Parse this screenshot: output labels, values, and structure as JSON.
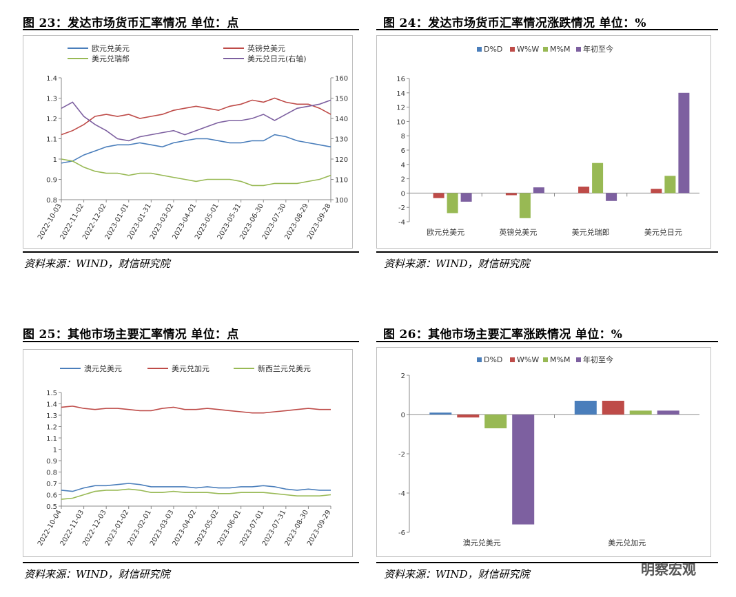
{
  "panels": [
    {
      "title": "图 23：发达市场货币汇率情况    单位：点",
      "source": "资料来源：WIND，财信研究院"
    },
    {
      "title": "图 24：发达市场货币汇率情况涨跌情况  单位：%",
      "source": "资料来源：WIND，财信研究院"
    },
    {
      "title": "图 25：其他市场主要汇率情况  单位：点",
      "source": "资料来源：WIND，财信研究院"
    },
    {
      "title": "图 26：其他市场主要汇率涨跌情况  单位：%",
      "source": "资料来源：WIND，财信研究院"
    }
  ],
  "watermark": "明察宏观",
  "chart_data": [
    {
      "type": "line",
      "legend_position": "top",
      "x_ticks": [
        "2022-10-03",
        "2022-11-02",
        "2022-12-02",
        "2023-01-01",
        "2023-01-31",
        "2023-03-02",
        "2023-04-01",
        "2023-05-01",
        "2023-05-31",
        "2023-06-30",
        "2023-07-30",
        "2023-08-29",
        "2023-09-28"
      ],
      "ylim": [
        0.8,
        1.4
      ],
      "yticks": [
        "0.8",
        "0.9",
        "1",
        "1.1",
        "1.2",
        "1.3",
        "1.4"
      ],
      "y2lim": [
        100,
        160
      ],
      "y2ticks": [
        "100",
        "110",
        "120",
        "130",
        "140",
        "150",
        "160"
      ],
      "grid": false,
      "series": [
        {
          "name": "欧元兑美元",
          "axis": "left",
          "color": "#4a7ebb",
          "values": [
            0.98,
            0.99,
            1.02,
            1.04,
            1.06,
            1.07,
            1.07,
            1.08,
            1.07,
            1.06,
            1.08,
            1.09,
            1.1,
            1.1,
            1.09,
            1.08,
            1.08,
            1.09,
            1.09,
            1.12,
            1.11,
            1.09,
            1.08,
            1.07,
            1.06
          ]
        },
        {
          "name": "英镑兑美元",
          "axis": "left",
          "color": "#be4b48",
          "values": [
            1.12,
            1.14,
            1.17,
            1.21,
            1.22,
            1.21,
            1.22,
            1.2,
            1.21,
            1.22,
            1.24,
            1.25,
            1.26,
            1.25,
            1.24,
            1.26,
            1.27,
            1.29,
            1.28,
            1.3,
            1.28,
            1.27,
            1.27,
            1.25,
            1.22
          ]
        },
        {
          "name": "美元兑瑞郎",
          "axis": "left",
          "color": "#98b954",
          "values": [
            1.0,
            0.99,
            0.96,
            0.94,
            0.93,
            0.93,
            0.92,
            0.93,
            0.93,
            0.92,
            0.91,
            0.9,
            0.89,
            0.9,
            0.9,
            0.9,
            0.89,
            0.87,
            0.87,
            0.88,
            0.88,
            0.88,
            0.89,
            0.9,
            0.92
          ]
        },
        {
          "name": "美元兑日元(右轴)",
          "axis": "right",
          "color": "#7d60a0",
          "values": [
            145,
            148,
            141,
            137,
            134,
            130,
            129,
            131,
            132,
            133,
            134,
            132,
            134,
            136,
            138,
            139,
            139,
            140,
            142,
            139,
            142,
            145,
            146,
            147,
            149
          ]
        }
      ]
    },
    {
      "type": "bar",
      "legend_position": "top",
      "categories": [
        "欧元兑美元",
        "英镑兑美元",
        "美元兑瑞郎",
        "美元兑日元"
      ],
      "ylim": [
        -4,
        16
      ],
      "yticks": [
        "-4",
        "-2",
        "0",
        "2",
        "4",
        "6",
        "8",
        "10",
        "12",
        "14",
        "16"
      ],
      "grid": false,
      "series": [
        {
          "name": "D%D",
          "color": "#4a7ebb",
          "values": [
            0.0,
            0.0,
            0.0,
            0.0
          ]
        },
        {
          "name": "W%W",
          "color": "#be4b48",
          "values": [
            -0.7,
            -0.3,
            0.9,
            0.6
          ]
        },
        {
          "name": "M%M",
          "color": "#98b954",
          "values": [
            -2.8,
            -3.5,
            4.2,
            2.4
          ]
        },
        {
          "name": "年初至今",
          "color": "#7d60a0",
          "values": [
            -1.2,
            0.8,
            -1.1,
            14.0
          ]
        }
      ]
    },
    {
      "type": "line",
      "legend_position": "top",
      "x_ticks": [
        "2022-10-04",
        "2022-11-03",
        "2022-12-03",
        "2023-01-02",
        "2023-02-01",
        "2023-03-03",
        "2023-04-02",
        "2023-05-02",
        "2023-06-01",
        "2023-07-01",
        "2023-07-31",
        "2023-08-30",
        "2023-09-29"
      ],
      "ylim": [
        0.5,
        1.5
      ],
      "yticks": [
        "0.5",
        "0.6",
        "0.7",
        "0.8",
        "0.9",
        "1",
        "1.1",
        "1.2",
        "1.3",
        "1.4",
        "1.5"
      ],
      "grid": false,
      "series": [
        {
          "name": "澳元兑美元",
          "color": "#4a7ebb",
          "values": [
            0.64,
            0.63,
            0.66,
            0.68,
            0.68,
            0.69,
            0.7,
            0.69,
            0.67,
            0.67,
            0.67,
            0.67,
            0.66,
            0.67,
            0.66,
            0.66,
            0.67,
            0.67,
            0.68,
            0.67,
            0.65,
            0.64,
            0.65,
            0.64,
            0.64
          ]
        },
        {
          "name": "美元兑加元",
          "color": "#be4b48",
          "values": [
            1.37,
            1.38,
            1.36,
            1.35,
            1.36,
            1.36,
            1.35,
            1.34,
            1.34,
            1.36,
            1.37,
            1.35,
            1.35,
            1.36,
            1.35,
            1.34,
            1.33,
            1.32,
            1.32,
            1.33,
            1.34,
            1.35,
            1.36,
            1.35,
            1.35
          ]
        },
        {
          "name": "新西兰元兑美元",
          "color": "#98b954",
          "values": [
            0.56,
            0.57,
            0.6,
            0.63,
            0.64,
            0.64,
            0.65,
            0.64,
            0.62,
            0.62,
            0.63,
            0.62,
            0.62,
            0.62,
            0.61,
            0.61,
            0.62,
            0.62,
            0.62,
            0.61,
            0.6,
            0.59,
            0.59,
            0.59,
            0.6
          ]
        }
      ]
    },
    {
      "type": "bar",
      "legend_position": "top",
      "categories": [
        "澳元兑美元",
        "美元兑加元"
      ],
      "ylim": [
        -6,
        2
      ],
      "yticks": [
        "-6",
        "-4",
        "-2",
        "0",
        "2"
      ],
      "grid": false,
      "series": [
        {
          "name": "D%D",
          "color": "#4a7ebb",
          "values": [
            0.1,
            0.7
          ]
        },
        {
          "name": "W%W",
          "color": "#be4b48",
          "values": [
            -0.15,
            0.7
          ]
        },
        {
          "name": "M%M",
          "color": "#98b954",
          "values": [
            -0.7,
            0.2
          ]
        },
        {
          "name": "年初至今",
          "color": "#7d60a0",
          "values": [
            -5.6,
            0.2
          ]
        }
      ]
    }
  ]
}
